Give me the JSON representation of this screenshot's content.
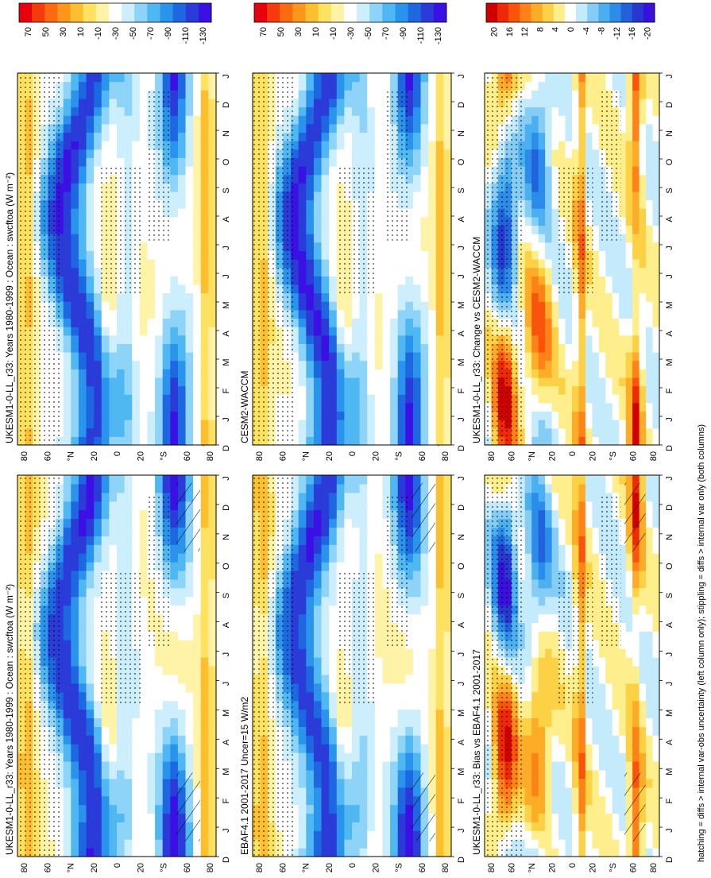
{
  "figure": {
    "footnote": "hatching = diffs > internal var-obs uncertainty (left column only); stippling = diffs > internal var only (both columns)",
    "colorbar_abs_ticks": [
      "70",
      "50",
      "30",
      "10",
      "-10",
      "-30",
      "-50",
      "-70",
      "-90",
      "-110",
      "-130"
    ],
    "colorbar_diff_ticks": [
      "20",
      "16",
      "12",
      "8",
      "4",
      "0",
      "-4",
      "-8",
      "-12",
      "-16",
      "-20"
    ],
    "month_ticks": [
      "D",
      "J",
      "F",
      "M",
      "A",
      "M",
      "J",
      "J",
      "A",
      "S",
      "O",
      "N",
      "D",
      "J"
    ],
    "lat_ticks": [
      "80",
      "60",
      "°N",
      "20",
      "0",
      "20",
      "°S",
      "60",
      "80"
    ],
    "colors": {
      "abs_palette": [
        "#e8000f",
        "#f53a0b",
        "#fb6a0e",
        "#fd961a",
        "#fdbf2e",
        "#fde262",
        "#fef3a6",
        "#ffffff",
        "#cdeefd",
        "#8ed4f8",
        "#4fb7f2",
        "#2a93ec",
        "#1d68e0",
        "#2a3bd8",
        "#3b10e4"
      ],
      "diff_palette": [
        "#d10000",
        "#ed2a05",
        "#f9540c",
        "#fd8217",
        "#fdac28",
        "#fdd145",
        "#feef8c",
        "#ffffff",
        "#c4ebfb",
        "#86cdf6",
        "#4cb0f0",
        "#2b8ce9",
        "#1f62dc",
        "#2837d0",
        "#3a10dc"
      ]
    },
    "panels": [
      {
        "title": "UKESM1-0-LL_r33: Years 1980-1999 : Ocean : swcftoa (W m⁻²)",
        "scale": "abs",
        "hatch": true
      },
      {
        "title": "EBAF4.1 2001-2017 Uncer=15 W/m2",
        "scale": "abs",
        "hatch": true
      },
      {
        "title": "UKESM1-0-LL_r33: Bias vs EBAF4.1 2001-2017",
        "scale": "diff",
        "hatch": true
      },
      {
        "title": "UKESM1-0-LL_r33: Years 1980-1999 : Ocean : swcftoa (W m⁻²)",
        "scale": "abs",
        "hatch": false
      },
      {
        "title": "CESM2-WACCM",
        "scale": "abs",
        "hatch": false
      },
      {
        "title": "UKESM1-0-LL_r33: Change vs CESM2-WACCM",
        "scale": "diff",
        "hatch": false
      }
    ]
  },
  "chart_data": [
    {
      "type": "heatmap",
      "title": "UKESM1-0-LL_r33: Years 1980-1999 : Ocean : swcftoa (W m⁻²)",
      "x": "month",
      "y": "latitude",
      "clim": [
        -130,
        70
      ],
      "colorbar_ticks": [
        70,
        50,
        30,
        10,
        -10,
        -30,
        -50,
        -70,
        -90,
        -110,
        -130
      ]
    },
    {
      "type": "heatmap",
      "title": "EBAF4.1 2001-2017 Uncer=15 W/m2",
      "x": "month",
      "y": "latitude",
      "clim": [
        -130,
        70
      ],
      "colorbar_ticks": [
        70,
        50,
        30,
        10,
        -10,
        -30,
        -50,
        -70,
        -90,
        -110,
        -130
      ]
    },
    {
      "type": "heatmap",
      "title": "UKESM1-0-LL_r33: Bias vs EBAF4.1 2001-2017",
      "x": "month",
      "y": "latitude",
      "clim": [
        -20,
        20
      ],
      "colorbar_ticks": [
        20,
        16,
        12,
        8,
        4,
        0,
        -4,
        -8,
        -12,
        -16,
        -20
      ]
    },
    {
      "type": "heatmap",
      "title": "UKESM1-0-LL_r33: Years 1980-1999 : Ocean : swcftoa (W m⁻²)",
      "x": "month",
      "y": "latitude",
      "clim": [
        -130,
        70
      ],
      "colorbar_ticks": [
        70,
        50,
        30,
        10,
        -10,
        -30,
        -50,
        -70,
        -90,
        -110,
        -130
      ]
    },
    {
      "type": "heatmap",
      "title": "CESM2-WACCM",
      "x": "month",
      "y": "latitude",
      "clim": [
        -130,
        70
      ],
      "colorbar_ticks": [
        70,
        50,
        30,
        10,
        -10,
        -30,
        -50,
        -70,
        -90,
        -110,
        -130
      ]
    },
    {
      "type": "heatmap",
      "title": "UKESM1-0-LL_r33: Change vs CESM2-WACCM",
      "x": "month",
      "y": "latitude",
      "clim": [
        -20,
        20
      ],
      "colorbar_ticks": [
        20,
        16,
        12,
        8,
        4,
        0,
        -4,
        -8,
        -12,
        -16,
        -20
      ]
    }
  ]
}
